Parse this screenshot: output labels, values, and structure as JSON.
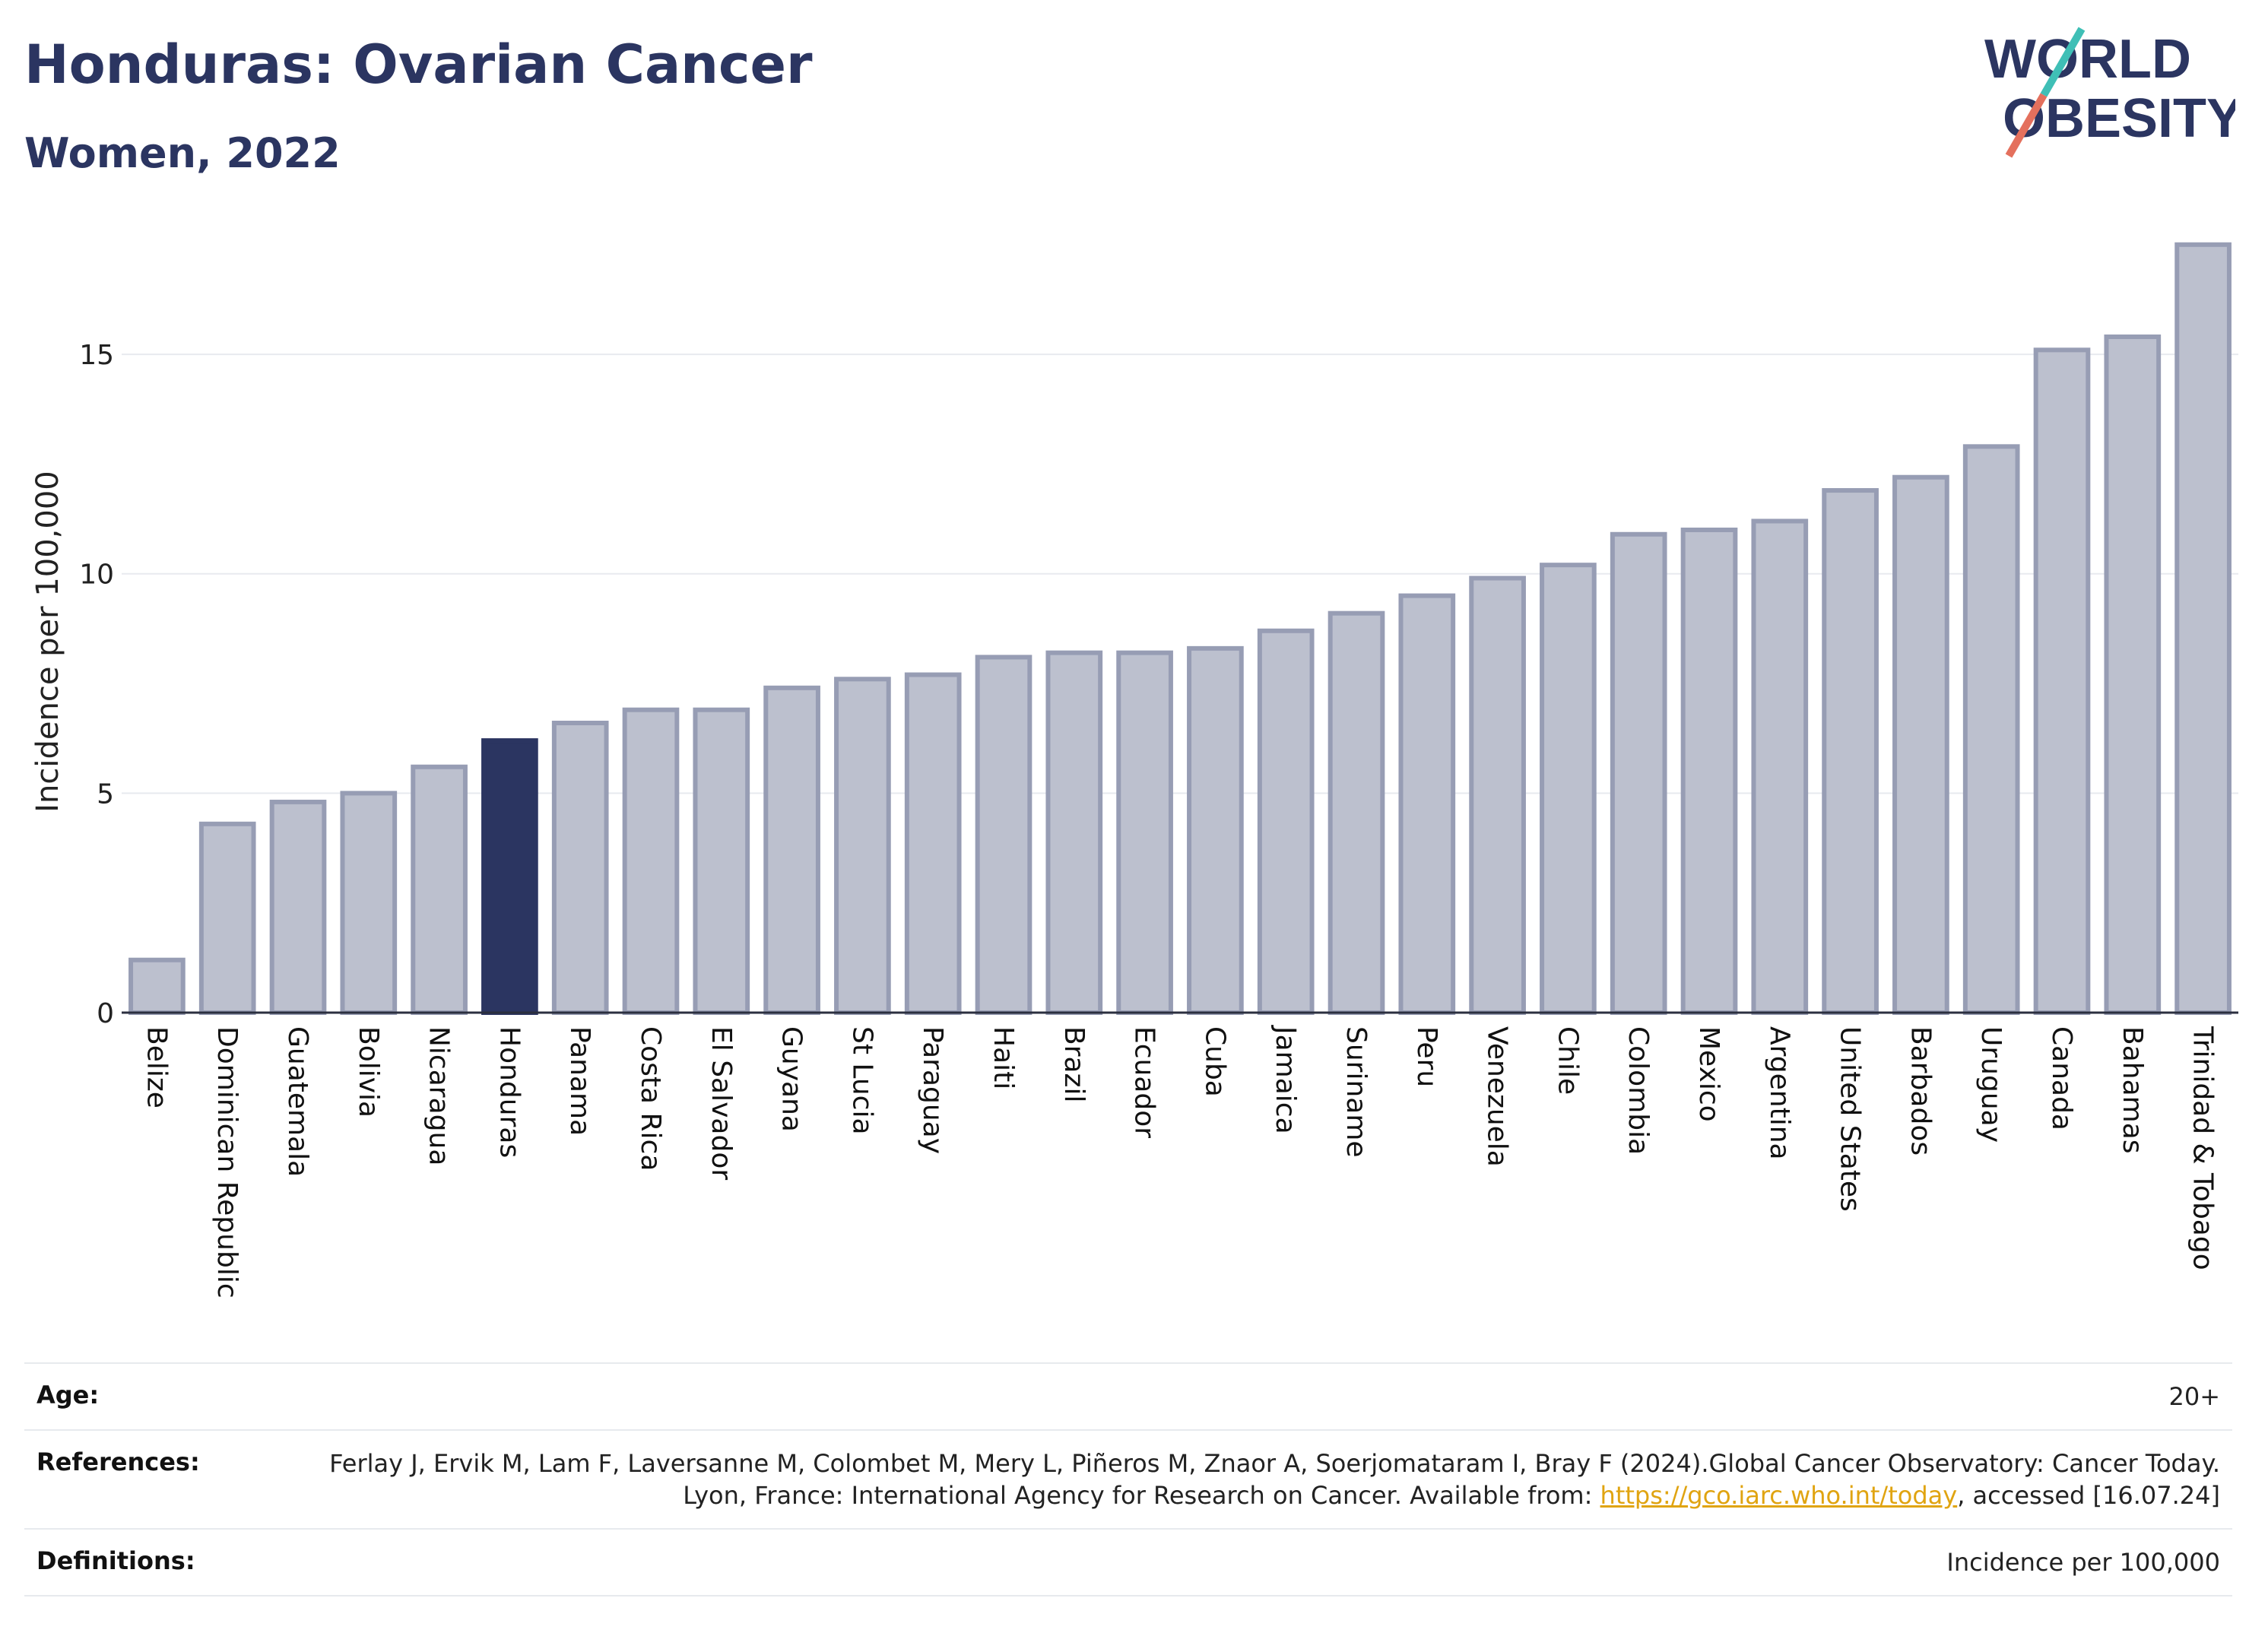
{
  "header": {
    "title": "Honduras: Ovarian Cancer",
    "subtitle": "Women, 2022",
    "logo": {
      "line1": "WORLD",
      "line2": "OBESITY"
    }
  },
  "colors": {
    "highlight": "#2b3561",
    "bar_fill": "#bcc0ce",
    "bar_stroke": "#979db4",
    "accent_teal": "#3fbfb6",
    "accent_coral": "#e4705d",
    "link": "#e0a411"
  },
  "chart_data": {
    "type": "bar",
    "ylabel": "Incidence per 100,000",
    "xlabel": "",
    "ylim": [
      0,
      17.6
    ],
    "yticks": [
      0,
      5,
      10,
      15
    ],
    "grid": true,
    "highlight": "Honduras",
    "categories": [
      "Belize",
      "Dominican Republic",
      "Guatemala",
      "Bolivia",
      "Nicaragua",
      "Honduras",
      "Panama",
      "Costa Rica",
      "El Salvador",
      "Guyana",
      "St Lucia",
      "Paraguay",
      "Haiti",
      "Brazil",
      "Ecuador",
      "Cuba",
      "Jamaica",
      "Suriname",
      "Peru",
      "Venezuela",
      "Chile",
      "Colombia",
      "Mexico",
      "Argentina",
      "United States",
      "Barbados",
      "Uruguay",
      "Canada",
      "Bahamas",
      "Trinidad & Tobago"
    ],
    "values": [
      1.2,
      4.3,
      4.8,
      5.0,
      5.6,
      6.2,
      6.6,
      6.9,
      6.9,
      7.4,
      7.6,
      7.7,
      8.1,
      8.2,
      8.2,
      8.3,
      8.7,
      9.1,
      9.5,
      9.9,
      10.2,
      10.9,
      11.0,
      11.2,
      11.9,
      12.2,
      12.9,
      15.1,
      15.4,
      17.5
    ]
  },
  "references": {
    "age_label": "Age:",
    "age_value": "20+",
    "refs_label": "References:",
    "refs_text_1": "Ferlay J, Ervik M, Lam F, Laversanne M, Colombet M, Mery L, Piñeros M, Znaor A, Soerjomataram I, Bray F (2024).Global Cancer Observatory: Cancer Today. Lyon, France: International Agency for Research on Cancer. Available from: ",
    "refs_link": "https://gco.iarc.who.int/today",
    "refs_text_2": ", accessed [16.07.24]",
    "defs_label": "Definitions:",
    "defs_value": "Incidence per 100,000"
  }
}
